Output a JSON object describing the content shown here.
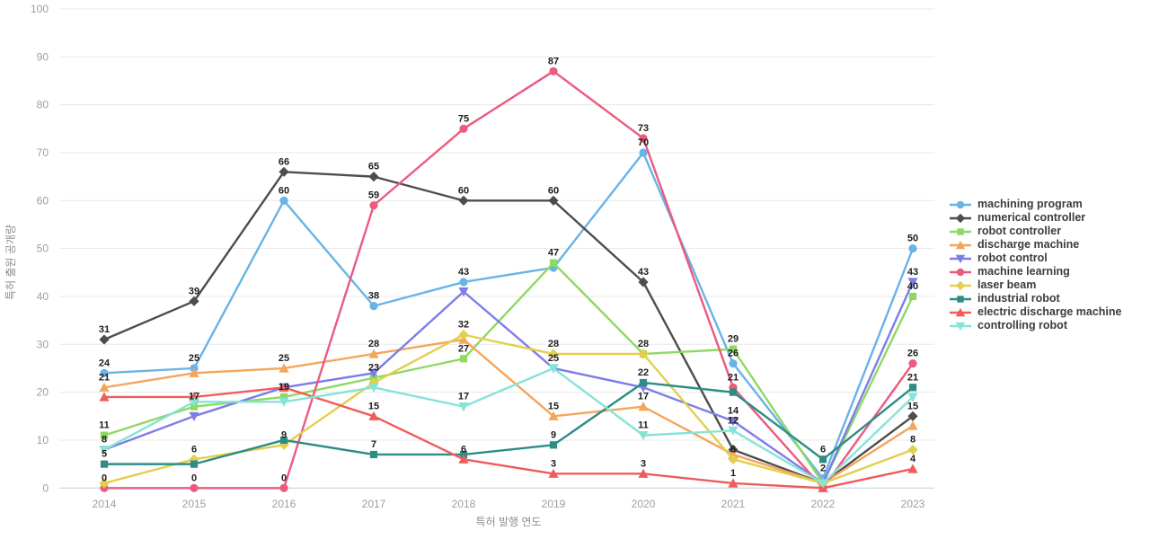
{
  "chart_data": {
    "type": "line",
    "title": "",
    "xlabel": "특허 발행 연도",
    "ylabel": "특허 출원 공개량",
    "x": [
      2014,
      2015,
      2016,
      2017,
      2018,
      2019,
      2020,
      2021,
      2022,
      2023
    ],
    "ylim": [
      0,
      100
    ],
    "ytick_step": 10,
    "grid": true,
    "legend_position": "right",
    "series": [
      {
        "name": "machining program",
        "color": "#69b3e7",
        "marker": "circle",
        "values": [
          24,
          25,
          60,
          38,
          43,
          46,
          70,
          26,
          2,
          50
        ],
        "labels": [
          "24",
          "25",
          "60",
          "38",
          "43",
          "",
          "70",
          "26",
          "2",
          "50"
        ]
      },
      {
        "name": "numerical controller",
        "color": "#4d4d4d",
        "marker": "diamond",
        "values": [
          31,
          39,
          66,
          65,
          60,
          60,
          43,
          8,
          1,
          15
        ],
        "labels": [
          "31",
          "39",
          "66",
          "65",
          "60",
          "60",
          "43",
          "",
          "",
          "15"
        ]
      },
      {
        "name": "robot controller",
        "color": "#8dd962",
        "marker": "square",
        "values": [
          11,
          17,
          19,
          23,
          27,
          47,
          28,
          29,
          1,
          40
        ],
        "labels": [
          "11",
          "17",
          "19",
          "23",
          "27",
          "47",
          "28",
          "29",
          "",
          "40"
        ]
      },
      {
        "name": "discharge machine",
        "color": "#f5a55b",
        "marker": "triangle-up",
        "values": [
          21,
          24,
          25,
          28,
          31,
          15,
          17,
          7,
          1,
          13
        ],
        "labels": [
          "21",
          "",
          "25",
          "28",
          "",
          "15",
          "17",
          "",
          "",
          ""
        ]
      },
      {
        "name": "robot control",
        "color": "#7e7ce8",
        "marker": "triangle-down",
        "values": [
          8,
          15,
          21,
          24,
          41,
          25,
          21,
          14,
          1,
          43
        ],
        "labels": [
          "8",
          "",
          "",
          "",
          "",
          "25",
          "",
          "14",
          "",
          "43"
        ]
      },
      {
        "name": "machine learning",
        "color": "#ec5a7f",
        "marker": "circle",
        "values": [
          0,
          0,
          0,
          59,
          75,
          87,
          73,
          21,
          0,
          26
        ],
        "labels": [
          "0",
          "0",
          "0",
          "59",
          "75",
          "87",
          "73",
          "21",
          "",
          "26"
        ]
      },
      {
        "name": "laser beam",
        "color": "#e2cf4b",
        "marker": "diamond",
        "values": [
          1,
          6,
          9,
          22,
          32,
          28,
          28,
          6,
          1,
          8
        ],
        "labels": [
          "",
          "6",
          "9",
          "",
          "32",
          "28",
          "",
          "6",
          "",
          "8"
        ]
      },
      {
        "name": "industrial robot",
        "color": "#2d8d85",
        "marker": "square",
        "values": [
          5,
          5,
          10,
          7,
          7,
          9,
          22,
          20,
          6,
          21
        ],
        "labels": [
          "5",
          "",
          "",
          "7",
          "",
          "9",
          "22",
          "",
          "6",
          "21"
        ]
      },
      {
        "name": "electric discharge machine",
        "color": "#ee5c5c",
        "marker": "triangle-up",
        "values": [
          19,
          19,
          21,
          15,
          6,
          3,
          3,
          1,
          0,
          4
        ],
        "labels": [
          "",
          "",
          "",
          "15",
          "6",
          "3",
          "3",
          "1",
          "",
          "4"
        ]
      },
      {
        "name": "controlling robot",
        "color": "#86e3d8",
        "marker": "triangle-down",
        "values": [
          8,
          18,
          18,
          21,
          17,
          25,
          11,
          12,
          1,
          19
        ],
        "labels": [
          "",
          "",
          "",
          "",
          "17",
          "",
          "11",
          "12",
          "",
          ""
        ]
      }
    ]
  }
}
